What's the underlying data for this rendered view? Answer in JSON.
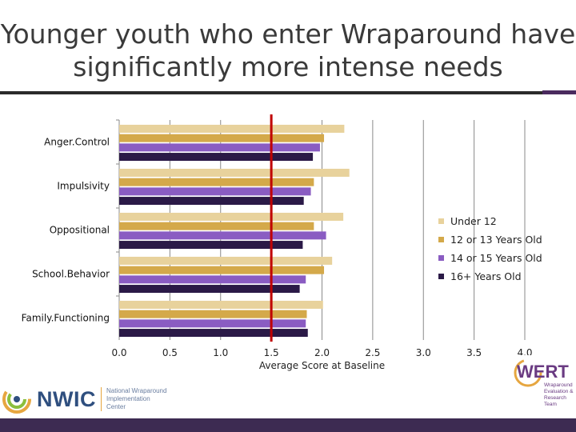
{
  "title": "Younger youth who enter Wraparound have significantly more intense needs",
  "chart_data": {
    "type": "bar",
    "orientation": "horizontal",
    "categories": [
      "Anger.Control",
      "Impulsivity",
      "Oppositional",
      "School.Behavior",
      "Family.Functioning"
    ],
    "series": [
      {
        "name": "Under 12",
        "color": "#e8d29c",
        "values": [
          2.22,
          2.27,
          2.21,
          2.1,
          2.01
        ]
      },
      {
        "name": "12 or 13 Years Old",
        "color": "#d4a94a",
        "values": [
          2.02,
          1.92,
          1.92,
          2.02,
          1.85
        ]
      },
      {
        "name": "14 or 15 Years Old",
        "color": "#8a5cc2",
        "values": [
          1.98,
          1.89,
          2.04,
          1.84,
          1.84
        ]
      },
      {
        "name": "16+ Years Old",
        "color": "#2b1a47",
        "values": [
          1.91,
          1.82,
          1.81,
          1.78,
          1.86
        ]
      }
    ],
    "xlim": [
      0,
      4
    ],
    "xticks": [
      "0.0",
      "0.5",
      "1.0",
      "1.5",
      "2.0",
      "2.5",
      "3.0",
      "3.5",
      "4.0"
    ],
    "xlabel": "Average Score at Baseline",
    "ylabel": "",
    "reference_line": {
      "value": 1.5,
      "color": "#c00000"
    },
    "grid": true,
    "legend_position": "right"
  },
  "logos": {
    "nwic": {
      "word": "NWIC",
      "subtitle": "National Wraparound Implementation Center"
    },
    "wert": {
      "word": "WERT",
      "subtitle": "Wraparound Evaluation & Research Team"
    }
  }
}
